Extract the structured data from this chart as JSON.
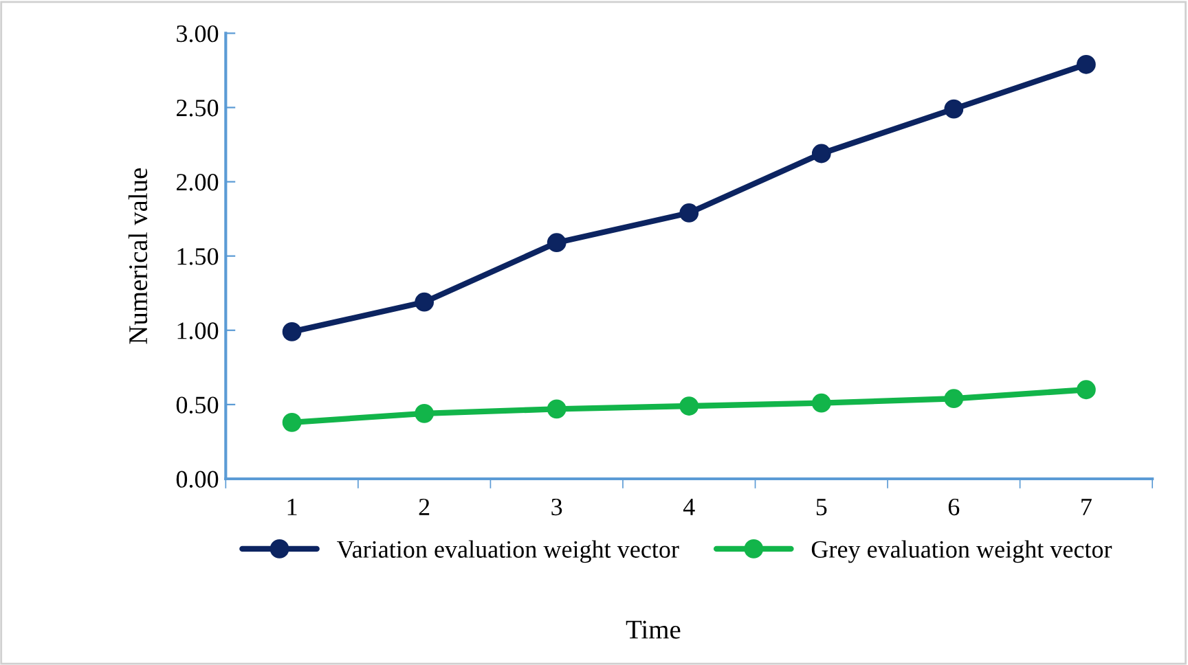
{
  "chart_data": {
    "type": "line",
    "xlabel": "Time",
    "ylabel": "Numerical value",
    "categories": [
      "1",
      "2",
      "3",
      "4",
      "5",
      "6",
      "7"
    ],
    "series": [
      {
        "name": "Variation evaluation weight vector",
        "color": "#0c2461",
        "values": [
          0.99,
          1.19,
          1.59,
          1.79,
          2.19,
          2.49,
          2.79
        ]
      },
      {
        "name": "Grey evaluation weight vector",
        "color": "#12b54a",
        "values": [
          0.38,
          0.44,
          0.47,
          0.49,
          0.51,
          0.54,
          0.6
        ]
      }
    ],
    "ylim": [
      0,
      3
    ],
    "yticks": [
      {
        "value": 0,
        "label": "0.00"
      },
      {
        "value": 0.5,
        "label": "0.50"
      },
      {
        "value": 1,
        "label": "1.00"
      },
      {
        "value": 1.5,
        "label": "1.50"
      },
      {
        "value": 2,
        "label": "2.00"
      },
      {
        "value": 2.5,
        "label": "2.50"
      },
      {
        "value": 3,
        "label": "3.00"
      }
    ],
    "grid": false,
    "legend": "bottom",
    "marker": "circle",
    "line_style": "solid"
  }
}
